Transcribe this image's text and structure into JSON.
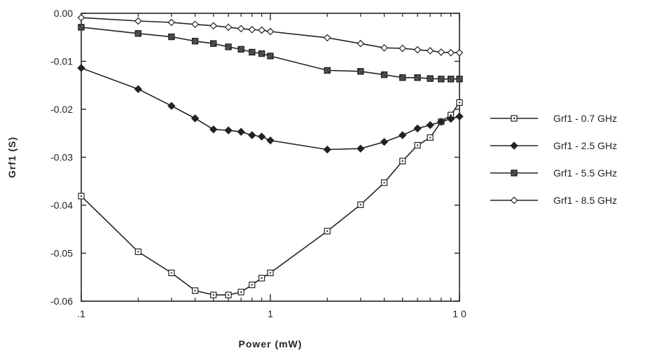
{
  "chart_data": {
    "type": "line",
    "xscale": "log",
    "xlim": [
      0.1,
      10
    ],
    "ylim": [
      -0.06,
      0.0
    ],
    "xticks": [
      0.1,
      1,
      10
    ],
    "xtick_labels": [
      ".1",
      "1",
      "1 0"
    ],
    "yticks": [
      0.0,
      -0.01,
      -0.02,
      -0.03,
      -0.04,
      -0.05,
      -0.06
    ],
    "ytick_labels": [
      "0.00",
      "-0.01",
      "-0.02",
      "-0.03",
      "-0.04",
      "-0.05",
      "-0.06"
    ],
    "xlabel": "Power (mW)",
    "ylabel": "Grf1 (S)",
    "title": "",
    "grid": false,
    "legend_position": "right",
    "series": [
      {
        "name": "Grf1 - 0.7 GHz",
        "marker": "open-square",
        "x": [
          0.1,
          0.2,
          0.3,
          0.4,
          0.5,
          0.6,
          0.7,
          0.8,
          0.9,
          1,
          2,
          3,
          4,
          5,
          6,
          7,
          8,
          9,
          10
        ],
        "y": [
          -0.0381,
          -0.0497,
          -0.0541,
          -0.0578,
          -0.0587,
          -0.0587,
          -0.0581,
          -0.0566,
          -0.0552,
          -0.0541,
          -0.0454,
          -0.0399,
          -0.0353,
          -0.0308,
          -0.0275,
          -0.0259,
          -0.0226,
          -0.0212,
          -0.0186
        ]
      },
      {
        "name": "Grf1 - 2.5 GHz",
        "marker": "filled-diamond",
        "x": [
          0.1,
          0.2,
          0.3,
          0.4,
          0.5,
          0.6,
          0.7,
          0.8,
          0.9,
          1,
          2,
          3,
          4,
          5,
          6,
          7,
          8,
          9,
          10
        ],
        "y": [
          -0.0114,
          -0.0158,
          -0.0193,
          -0.0219,
          -0.0242,
          -0.0244,
          -0.0247,
          -0.0254,
          -0.0257,
          -0.0265,
          -0.0284,
          -0.0282,
          -0.0268,
          -0.0254,
          -0.024,
          -0.0233,
          -0.0226,
          -0.022,
          -0.0215
        ]
      },
      {
        "name": "Grf1 - 5.5 GHz",
        "marker": "crossed-square",
        "x": [
          0.1,
          0.2,
          0.3,
          0.4,
          0.5,
          0.6,
          0.7,
          0.8,
          0.9,
          1,
          2,
          3,
          4,
          5,
          6,
          7,
          8,
          9,
          10
        ],
        "y": [
          -0.0029,
          -0.0042,
          -0.0049,
          -0.0058,
          -0.0063,
          -0.007,
          -0.0075,
          -0.0081,
          -0.0084,
          -0.0089,
          -0.0119,
          -0.0121,
          -0.0128,
          -0.0134,
          -0.0134,
          -0.0136,
          -0.0137,
          -0.0137,
          -0.0137
        ]
      },
      {
        "name": "Grf1 - 8.5 GHz",
        "marker": "open-diamond",
        "x": [
          0.1,
          0.2,
          0.3,
          0.4,
          0.5,
          0.6,
          0.7,
          0.8,
          0.9,
          1,
          2,
          3,
          4,
          5,
          6,
          7,
          8,
          9,
          10
        ],
        "y": [
          -0.0009,
          -0.0016,
          -0.0019,
          -0.0023,
          -0.0026,
          -0.0029,
          -0.0032,
          -0.0034,
          -0.0035,
          -0.0038,
          -0.0051,
          -0.0063,
          -0.0072,
          -0.0073,
          -0.0076,
          -0.0078,
          -0.0081,
          -0.0082,
          -0.0082
        ]
      }
    ]
  },
  "labels": {
    "xlabel_display": "Power   (mW)",
    "ylabel_display": "Grf1   (S)"
  }
}
